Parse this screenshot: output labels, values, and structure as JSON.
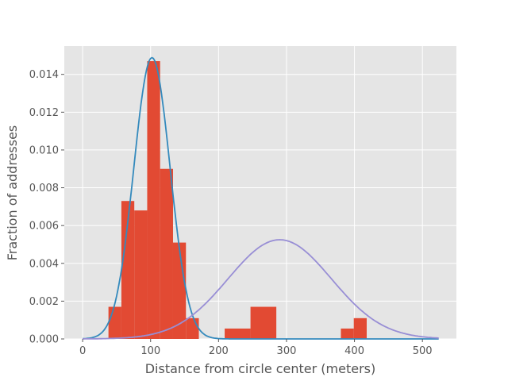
{
  "chart_data": {
    "type": "bar",
    "title": "",
    "xlabel": "Distance from circle center (meters)",
    "ylabel": "Fraction of addresses",
    "xlim": [
      -27,
      550
    ],
    "ylim": [
      0,
      0.0155
    ],
    "grid": true,
    "legend": "none",
    "x_ticks": [
      0,
      100,
      200,
      300,
      400,
      500
    ],
    "y_ticks": [
      0.0,
      0.002,
      0.004,
      0.006,
      0.008,
      0.01,
      0.012,
      0.014
    ],
    "x_tick_labels": [
      "0",
      "100",
      "200",
      "300",
      "400",
      "500"
    ],
    "y_tick_labels": [
      "0.000",
      "0.002",
      "0.004",
      "0.006",
      "0.008",
      "0.010",
      "0.012",
      "0.014"
    ],
    "histogram": {
      "color": "#E24A33",
      "bins": [
        {
          "x0": 38,
          "x1": 57,
          "value": 0.0017
        },
        {
          "x0": 57,
          "x1": 76,
          "value": 0.0073
        },
        {
          "x0": 76,
          "x1": 95,
          "value": 0.0068
        },
        {
          "x0": 95,
          "x1": 114,
          "value": 0.0147
        },
        {
          "x0": 114,
          "x1": 133,
          "value": 0.009
        },
        {
          "x0": 133,
          "x1": 152,
          "value": 0.0051
        },
        {
          "x0": 152,
          "x1": 171,
          "value": 0.0011
        },
        {
          "x0": 209,
          "x1": 247,
          "value": 0.00055
        },
        {
          "x0": 247,
          "x1": 285,
          "value": 0.0017
        },
        {
          "x0": 380,
          "x1": 399,
          "value": 0.00055
        },
        {
          "x0": 399,
          "x1": 418,
          "value": 0.0011
        }
      ]
    },
    "series": [
      {
        "type": "normal-pdf",
        "mean": 102,
        "std": 26.8,
        "color": "#348ABD",
        "x_range": [
          0,
          525
        ]
      },
      {
        "type": "normal-pdf",
        "mean": 290,
        "std": 76,
        "color": "#988ED5",
        "x_range": [
          0,
          525
        ]
      }
    ]
  }
}
